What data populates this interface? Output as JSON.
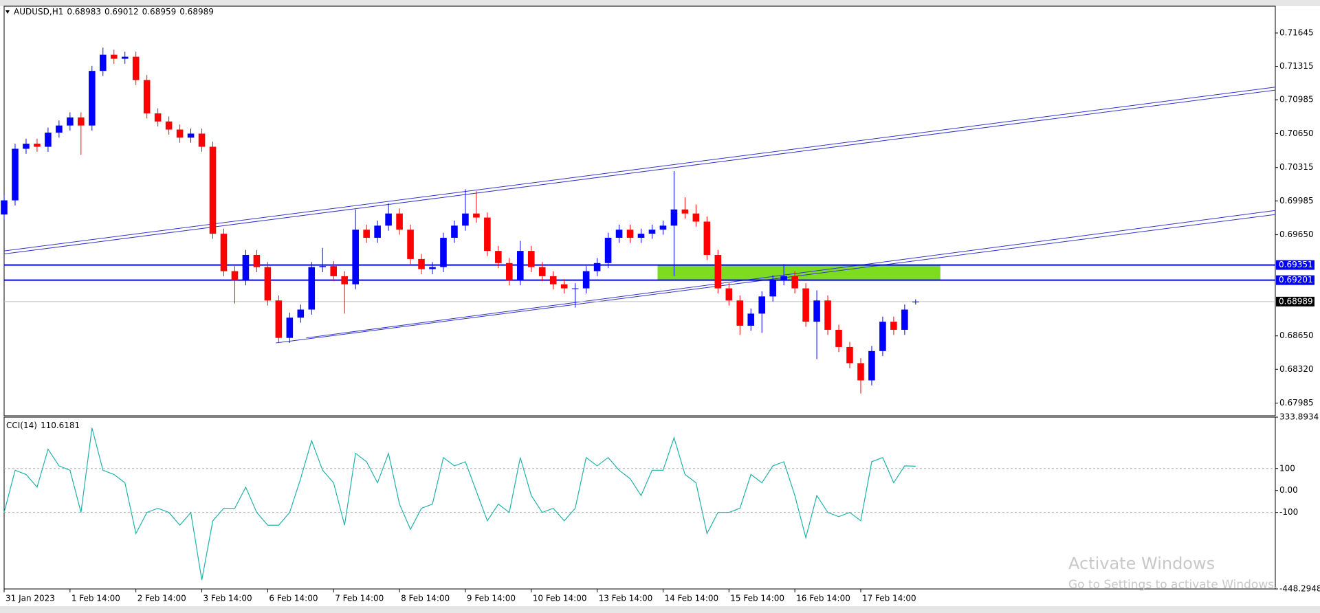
{
  "chart_data": [
    {
      "type": "candlestick",
      "title": "AUDUSD,H1",
      "x": [
        0,
        4,
        8,
        12,
        16,
        20,
        24,
        28,
        32,
        36,
        40,
        44,
        48,
        52,
        56,
        60,
        64,
        68,
        72,
        76,
        80,
        84,
        88,
        92,
        96,
        100,
        104,
        108,
        112,
        116,
        120,
        124,
        128,
        132,
        136,
        140,
        144,
        148,
        152,
        156,
        160,
        164,
        168,
        172,
        176,
        180,
        184,
        188,
        192,
        196,
        200,
        204,
        208,
        212,
        216,
        220,
        224,
        228,
        232,
        236,
        240,
        244,
        248,
        252,
        256,
        260,
        264,
        268,
        272,
        276,
        280,
        284,
        288,
        292,
        296,
        300,
        304,
        308,
        312,
        316,
        320,
        324,
        328,
        332
      ],
      "open": [
        0.6985,
        0.6999,
        0.705,
        0.7055,
        0.7052,
        0.7066,
        0.7073,
        0.7081,
        0.7073,
        0.7127,
        0.7143,
        0.7139,
        0.7141,
        0.7118,
        0.7085,
        0.7077,
        0.7069,
        0.7061,
        0.7065,
        0.7052,
        0.6966,
        0.6929,
        0.692,
        0.6945,
        0.6933,
        0.69,
        0.6863,
        0.6883,
        0.6891,
        0.6933,
        0.6934,
        0.6924,
        0.6916,
        0.697,
        0.6962,
        0.6974,
        0.6986,
        0.697,
        0.6941,
        0.6931,
        0.6933,
        0.6962,
        0.6974,
        0.6986,
        0.6982,
        0.6949,
        0.6937,
        0.692,
        0.6949,
        0.6933,
        0.6924,
        0.6916,
        0.6912,
        0.6912,
        0.6929,
        0.6937,
        0.6962,
        0.697,
        0.6962,
        0.6966,
        0.697,
        0.6974,
        0.699,
        0.6986,
        0.6978,
        0.6945,
        0.6912,
        0.69,
        0.6875,
        0.6887,
        0.6904,
        0.692,
        0.6924,
        0.6912,
        0.6879,
        0.69,
        0.6871,
        0.6854,
        0.6838,
        0.6821,
        0.685,
        0.6879,
        0.6871,
        0.68983
      ],
      "high": [
        0.7004,
        0.7055,
        0.706,
        0.706,
        0.7071,
        0.7078,
        0.7086,
        0.7086,
        0.7132,
        0.715,
        0.7148,
        0.7146,
        0.7146,
        0.7123,
        0.709,
        0.7082,
        0.7074,
        0.707,
        0.707,
        0.7057,
        0.6971,
        0.6934,
        0.695,
        0.695,
        0.6938,
        0.6905,
        0.6888,
        0.6896,
        0.6938,
        0.6952,
        0.6939,
        0.6929,
        0.699,
        0.6975,
        0.6979,
        0.6996,
        0.6991,
        0.6975,
        0.6946,
        0.6938,
        0.6967,
        0.6979,
        0.701,
        0.7008,
        0.6987,
        0.6954,
        0.6942,
        0.6959,
        0.6954,
        0.6938,
        0.6929,
        0.6921,
        0.6917,
        0.6934,
        0.6942,
        0.6967,
        0.6975,
        0.6975,
        0.6971,
        0.6975,
        0.6979,
        0.7028,
        0.7002,
        0.6995,
        0.6983,
        0.695,
        0.6917,
        0.6905,
        0.6892,
        0.6909,
        0.6925,
        0.6936,
        0.6929,
        0.6917,
        0.691,
        0.6905,
        0.6876,
        0.6859,
        0.6843,
        0.6855,
        0.6884,
        0.6884,
        0.6896,
        0.69012
      ],
      "low": [
        0.698,
        0.6994,
        0.7045,
        0.7047,
        0.7047,
        0.7061,
        0.7068,
        0.7044,
        0.7068,
        0.7122,
        0.7134,
        0.7134,
        0.7113,
        0.708,
        0.7072,
        0.7064,
        0.7056,
        0.7056,
        0.7047,
        0.6961,
        0.6924,
        0.6897,
        0.6915,
        0.6928,
        0.6895,
        0.6858,
        0.6858,
        0.6878,
        0.6886,
        0.6928,
        0.6919,
        0.6887,
        0.6911,
        0.6957,
        0.6957,
        0.6969,
        0.6965,
        0.6936,
        0.6926,
        0.6926,
        0.6928,
        0.6957,
        0.6969,
        0.6977,
        0.6944,
        0.6932,
        0.6915,
        0.6915,
        0.6928,
        0.6919,
        0.6911,
        0.6907,
        0.6893,
        0.6907,
        0.6924,
        0.6932,
        0.6957,
        0.6957,
        0.6957,
        0.6961,
        0.6965,
        0.6924,
        0.6981,
        0.6973,
        0.694,
        0.6907,
        0.6895,
        0.6866,
        0.687,
        0.6868,
        0.6899,
        0.6915,
        0.6907,
        0.6874,
        0.6842,
        0.6866,
        0.6849,
        0.6833,
        0.6808,
        0.6816,
        0.6845,
        0.6866,
        0.6866,
        0.68959
      ],
      "close": [
        0.6999,
        0.705,
        0.7055,
        0.7052,
        0.7066,
        0.7073,
        0.7081,
        0.7073,
        0.7127,
        0.7143,
        0.7139,
        0.7141,
        0.7118,
        0.7085,
        0.7077,
        0.7069,
        0.7061,
        0.7065,
        0.7052,
        0.6966,
        0.6929,
        0.692,
        0.6945,
        0.6933,
        0.69,
        0.6863,
        0.6883,
        0.6891,
        0.6933,
        0.6934,
        0.6924,
        0.6916,
        0.697,
        0.6962,
        0.6974,
        0.6986,
        0.697,
        0.6941,
        0.6931,
        0.6933,
        0.6962,
        0.6974,
        0.6986,
        0.6982,
        0.6949,
        0.6937,
        0.692,
        0.6949,
        0.6933,
        0.6924,
        0.6916,
        0.6912,
        0.6912,
        0.6929,
        0.6937,
        0.6962,
        0.697,
        0.6962,
        0.6966,
        0.697,
        0.6974,
        0.699,
        0.6986,
        0.6978,
        0.6945,
        0.6912,
        0.69,
        0.6875,
        0.6887,
        0.6904,
        0.692,
        0.6924,
        0.6912,
        0.6879,
        0.69,
        0.6871,
        0.6854,
        0.6838,
        0.6821,
        0.685,
        0.6879,
        0.6871,
        0.6891,
        0.68989
      ],
      "up_color": "#0000ff",
      "down_color": "#ff0000",
      "xlim": [
        0,
        463
      ],
      "ylim": [
        0.6786,
        0.7191
      ],
      "yticks": [
        0.71645,
        0.71315,
        0.70985,
        {
          "value": 0.7065,
          "label": "0.70650"
        },
        0.70315,
        0.69985,
        {
          "value": 0.6965,
          "label": "0.69650"
        },
        {
          "value": 0.6865,
          "label": "0.68650"
        },
        {
          "value": 0.6832,
          "label": "0.68320"
        },
        0.67985
      ],
      "hlines": [
        {
          "value": 0.69351,
          "color": "#0000ff"
        },
        {
          "value": 0.69201,
          "color": "#0000ff"
        }
      ],
      "price_line_color": "#c0c0c0",
      "rectangles": [
        {
          "x0": 238,
          "x1": 341,
          "y0": 0.69201,
          "y1": 0.69351,
          "color": "#7ddc1f"
        }
      ],
      "trendlines": [
        {
          "x": [
            0,
            463
          ],
          "y": [
            0.6949,
            0.7111
          ],
          "color": "#3333cc"
        },
        {
          "x": [
            0,
            463
          ],
          "y": [
            0.6946,
            0.7108
          ],
          "color": "#3333cc"
        },
        {
          "x": [
            99,
            463
          ],
          "y": [
            0.6858,
            0.6985
          ],
          "color": "#3333cc"
        },
        {
          "x": [
            110,
            463
          ],
          "y": [
            0.6863,
            0.6989
          ],
          "color": "#3333cc"
        }
      ]
    },
    {
      "type": "line",
      "title": "CCI(14)",
      "x": [
        0,
        4,
        8,
        12,
        16,
        20,
        24,
        28,
        32,
        36,
        40,
        44,
        48,
        52,
        56,
        60,
        64,
        68,
        72,
        76,
        80,
        84,
        88,
        92,
        96,
        100,
        104,
        108,
        112,
        116,
        120,
        124,
        128,
        132,
        136,
        140,
        144,
        148,
        152,
        156,
        160,
        164,
        168,
        172,
        176,
        180,
        184,
        188,
        192,
        196,
        200,
        204,
        208,
        212,
        216,
        220,
        224,
        228,
        232,
        236,
        240,
        244,
        248,
        252,
        256,
        260,
        264,
        268,
        272,
        276,
        280,
        284,
        288,
        292,
        296,
        300,
        304,
        308,
        312,
        316,
        320,
        324,
        328,
        332
      ],
      "series": [
        {
          "name": "CCI(14)",
          "color": "#20b2aa",
          "values": [
            -100,
            92,
            73,
            15,
            188,
            112,
            92,
            -100,
            285,
            92,
            73,
            35,
            -196,
            -100,
            -81,
            -100,
            -158,
            -100,
            -408,
            -138,
            -81,
            -81,
            15,
            -100,
            -158,
            -158,
            -100,
            54,
            227,
            92,
            35,
            -158,
            169,
            131,
            35,
            169,
            -62,
            -177,
            -81,
            -62,
            150,
            112,
            131,
            -4,
            -138,
            -62,
            -100,
            150,
            -23,
            -100,
            -81,
            -138,
            -81,
            150,
            112,
            150,
            92,
            54,
            -23,
            92,
            92,
            240,
            73,
            35,
            -196,
            -100,
            -100,
            -81,
            73,
            35,
            112,
            131,
            -23,
            -215,
            -23,
            -100,
            -119,
            -100,
            -138,
            131,
            150,
            35,
            112,
            110.6181
          ]
        }
      ],
      "xlim": [
        0,
        463
      ],
      "ylim": [
        -448.2948,
        333.8934
      ],
      "yticks": [
        333.8934,
        100,
        {
          "value": 0,
          "label": "0.00"
        },
        -100,
        -448.2948
      ],
      "levels": [
        100,
        -100
      ],
      "xticks": [
        {
          "value": 0,
          "label": "31 Jan 2023"
        },
        {
          "value": 24,
          "label": "1 Feb 14:00"
        },
        {
          "value": 48,
          "label": "2 Feb 14:00"
        },
        {
          "value": 72,
          "label": "3 Feb 14:00"
        },
        {
          "value": 96,
          "label": "6 Feb 14:00"
        },
        {
          "value": 120,
          "label": "7 Feb 14:00"
        },
        {
          "value": 144,
          "label": "8 Feb 14:00"
        },
        {
          "value": 168,
          "label": "9 Feb 14:00"
        },
        {
          "value": 192,
          "label": "10 Feb 14:00"
        },
        {
          "value": 216,
          "label": "13 Feb 14:00"
        },
        {
          "value": 240,
          "label": "14 Feb 14:00"
        },
        {
          "value": 264,
          "label": "15 Feb 14:00"
        },
        {
          "value": 288,
          "label": "16 Feb 14:00"
        },
        {
          "value": 312,
          "label": "17 Feb 14:00"
        }
      ]
    }
  ],
  "watermark": {
    "title": "Activate Windows",
    "subtitle": "Go to Settings to activate Windows."
  }
}
